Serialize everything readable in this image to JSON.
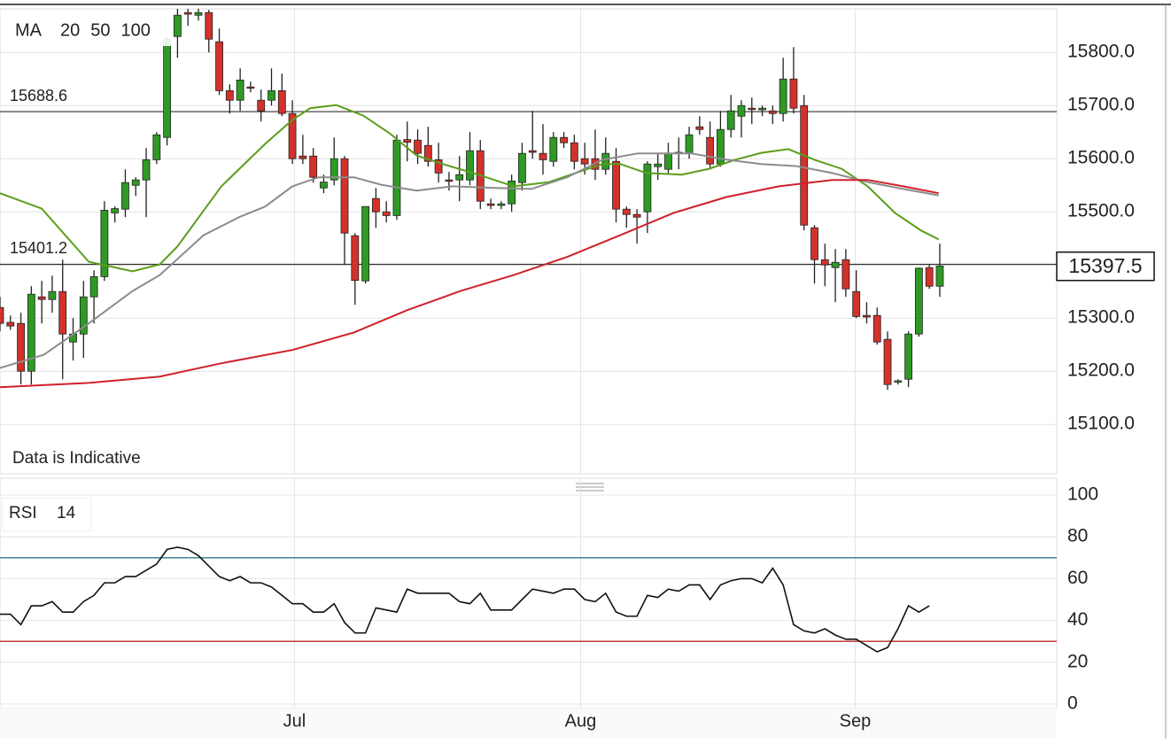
{
  "chart_data": [
    {
      "type": "candlestick",
      "legend_title": "MA",
      "annotation": "Data is Indicative",
      "xlim": [
        0,
        101.2
      ],
      "ylim": [
        15007,
        15882
      ],
      "yticks": [
        {
          "value": 15100,
          "label": "15100.0"
        },
        {
          "value": 15200,
          "label": "15200.0"
        },
        {
          "value": 15300,
          "label": "15300.0"
        },
        {
          "value": 15400,
          "label": "15400.0"
        },
        {
          "value": 15500,
          "label": "15500.0"
        },
        {
          "value": 15600,
          "label": "15600.0"
        },
        {
          "value": 15700,
          "label": "15700.0"
        },
        {
          "value": 15800,
          "label": "15800.0"
        }
      ],
      "grid": true,
      "up_color": "#2e9a24",
      "down_color": "#d2322b",
      "reference_lines": [
        15688.6,
        15401.2
      ],
      "last_price": 15397.5,
      "open": [
        15320,
        15292,
        15290,
        15200,
        15340,
        15335,
        15350,
        15255,
        15270,
        15340,
        15378,
        15498,
        15505,
        15550,
        15560,
        15598,
        15640,
        15830,
        15875,
        15870,
        15875,
        15820,
        15728,
        15710,
        15735,
        15710,
        15710,
        15728,
        15685,
        15605,
        15605,
        15545,
        15560,
        15600,
        15455,
        15370,
        15525,
        15500,
        15493,
        15636,
        15635,
        15625,
        15598,
        15560,
        15560,
        15560,
        15615,
        15515,
        15512,
        15515,
        15555,
        15615,
        15610,
        15595,
        15640,
        15630,
        15600,
        15600,
        15580,
        15595,
        15505,
        15495,
        15500,
        15585,
        15580,
        15610,
        15610,
        15660,
        15640,
        15590,
        15655,
        15680,
        15695,
        15692,
        15690,
        15685,
        15750,
        15700,
        15470,
        15410,
        15395,
        15410,
        15350,
        15305,
        15305,
        15260,
        15180,
        15185,
        15270,
        15395,
        15360
      ],
      "high": [
        15340,
        15305,
        15310,
        15360,
        15370,
        15380,
        15410,
        15300,
        15370,
        15390,
        15520,
        15510,
        15580,
        15565,
        15620,
        15650,
        15830,
        15890,
        15890,
        15885,
        15880,
        15845,
        15740,
        15770,
        15745,
        15730,
        15770,
        15760,
        15710,
        15645,
        15620,
        15570,
        15640,
        15605,
        15460,
        15510,
        15545,
        15520,
        15645,
        15670,
        15655,
        15660,
        15630,
        15575,
        15605,
        15650,
        15635,
        15525,
        15520,
        15570,
        15630,
        15690,
        15665,
        15650,
        15650,
        15645,
        15630,
        15655,
        15640,
        15620,
        15510,
        15505,
        15595,
        15610,
        15630,
        15640,
        15660,
        15680,
        15670,
        15690,
        15720,
        15710,
        15715,
        15700,
        15700,
        15790,
        15810,
        15720,
        15475,
        15440,
        15430,
        15430,
        15390,
        15330,
        15320,
        15275,
        15185,
        15275,
        15395,
        15400,
        15440
      ],
      "low": [
        15275,
        15278,
        15175,
        15175,
        15290,
        15310,
        15185,
        15220,
        15225,
        15290,
        15370,
        15480,
        15490,
        15530,
        15490,
        15590,
        15625,
        15790,
        15850,
        15860,
        15800,
        15720,
        15685,
        15690,
        15725,
        15670,
        15700,
        15680,
        15590,
        15590,
        15555,
        15535,
        15550,
        15400,
        15325,
        15365,
        15470,
        15480,
        15485,
        15595,
        15590,
        15585,
        15555,
        15540,
        15520,
        15550,
        15505,
        15505,
        15505,
        15500,
        15540,
        15600,
        15570,
        15585,
        15620,
        15580,
        15570,
        15560,
        15570,
        15480,
        15470,
        15440,
        15460,
        15560,
        15570,
        15580,
        15600,
        15645,
        15580,
        15585,
        15640,
        15640,
        15665,
        15680,
        15665,
        15670,
        15685,
        15465,
        15365,
        15360,
        15330,
        15340,
        15300,
        15290,
        15250,
        15165,
        15175,
        15170,
        15265,
        15355,
        15340
      ],
      "close": [
        15290,
        15285,
        15200,
        15345,
        15335,
        15350,
        15270,
        15270,
        15340,
        15378,
        15503,
        15506,
        15555,
        15560,
        15598,
        15645,
        15825,
        15870,
        15872,
        15875,
        15825,
        15728,
        15710,
        15748,
        15733,
        15690,
        15728,
        15685,
        15600,
        15600,
        15565,
        15556,
        15600,
        15460,
        15371,
        15510,
        15500,
        15493,
        15635,
        15631,
        15610,
        15595,
        15573,
        15558,
        15570,
        15615,
        15520,
        15512,
        15515,
        15558,
        15610,
        15612,
        15598,
        15640,
        15630,
        15595,
        15590,
        15580,
        15610,
        15505,
        15495,
        15490,
        15590,
        15590,
        15610,
        15612,
        15645,
        15655,
        15590,
        15655,
        15690,
        15700,
        15693,
        15695,
        15685,
        15750,
        15695,
        15475,
        15410,
        15400,
        15405,
        15355,
        15303,
        15302,
        15255,
        15175,
        15182,
        15270,
        15394,
        15360,
        15398
      ],
      "series": [
        {
          "name": "20",
          "color": "#5a9e1a",
          "x": [
            0,
            4,
            8.5,
            12.7,
            15.3,
            17,
            21.2,
            25.4,
            28,
            29.7,
            32.2,
            34.8,
            37.3,
            39.9,
            42.4,
            45.8,
            49.2,
            52.6,
            55.1,
            57.7,
            59.4,
            61.9,
            65.3,
            67.9,
            70.4,
            72.9,
            75.5,
            78,
            80.6,
            83.1,
            85.7,
            88.2,
            89.9
          ],
          "values": [
            15535,
            15506,
            15406,
            15388,
            15401,
            15435,
            15548,
            15628,
            15673,
            15695,
            15701,
            15681,
            15648,
            15606,
            15590,
            15570,
            15548,
            15556,
            15573,
            15590,
            15590,
            15573,
            15570,
            15581,
            15598,
            15611,
            15618,
            15598,
            15581,
            15548,
            15498,
            15465,
            15448
          ]
        },
        {
          "name": "50",
          "color": "#8c8c8c",
          "x": [
            0,
            4.2,
            8.5,
            12.7,
            15.3,
            19.5,
            22.9,
            25.4,
            28,
            30.5,
            33.9,
            36.5,
            39.9,
            43.3,
            47.5,
            50.9,
            54.3,
            57.7,
            61.1,
            66.2,
            69.6,
            72.9,
            76.3,
            79.7,
            83.1,
            86.5,
            89.9
          ],
          "values": [
            15206,
            15231,
            15290,
            15351,
            15381,
            15456,
            15490,
            15510,
            15548,
            15565,
            15565,
            15551,
            15540,
            15548,
            15545,
            15543,
            15565,
            15598,
            15610,
            15610,
            15598,
            15590,
            15586,
            15573,
            15556,
            15543,
            15531
          ]
        },
        {
          "name": "100",
          "color": "#d0202a",
          "x": [
            0,
            8.5,
            15.3,
            21.2,
            28,
            33.9,
            39,
            44.1,
            49.2,
            54.3,
            59.4,
            64.5,
            69.6,
            74.6,
            79.7,
            83.1,
            86.5,
            89.9
          ],
          "values": [
            15170,
            15178,
            15190,
            15215,
            15240,
            15273,
            15315,
            15351,
            15381,
            15415,
            15456,
            15498,
            15528,
            15548,
            15560,
            15560,
            15548,
            15535
          ]
        }
      ]
    },
    {
      "type": "line",
      "title": "RSI",
      "period": 14,
      "color": "#111111",
      "xlim": [
        0,
        101.2
      ],
      "ylim": [
        0,
        100
      ],
      "yticks": [
        0,
        20,
        40,
        60,
        80,
        100
      ],
      "grid": true,
      "xticks": [
        {
          "value": 28.2,
          "label": "Jul"
        },
        {
          "value": 55.6,
          "label": "Aug"
        },
        {
          "value": 81.9,
          "label": "Sep"
        }
      ],
      "levels": [
        70,
        30
      ],
      "level_colors": [
        "#2a7a8c",
        "#c0282a"
      ],
      "values": [
        43,
        43,
        38,
        47,
        47,
        49,
        44,
        44,
        49,
        52,
        58,
        58,
        61,
        61,
        64,
        67,
        74,
        75,
        74,
        71,
        66,
        61,
        59,
        61,
        58,
        58,
        56,
        52,
        48,
        48,
        44,
        44,
        48,
        39,
        34,
        34,
        46,
        45,
        44,
        55,
        53,
        53,
        53,
        53,
        49,
        48,
        53,
        45,
        45,
        45,
        50,
        55,
        54,
        53,
        55,
        55,
        50,
        49,
        53,
        44,
        42,
        42,
        52,
        51,
        55,
        54,
        57,
        57,
        50,
        57,
        59,
        60,
        60,
        58,
        65,
        57,
        38,
        35,
        34,
        36,
        33,
        31,
        31,
        28,
        25,
        27,
        36,
        47,
        44,
        47
      ]
    }
  ]
}
